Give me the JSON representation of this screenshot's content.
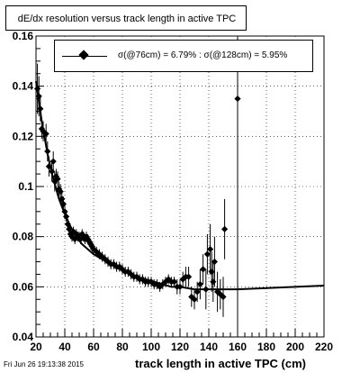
{
  "footer": {
    "timestamp": "Fri Jun 26 19:13:38 2015"
  },
  "chart_data": {
    "type": "scatter",
    "title": "dE/dx resolution versus track length in active TPC",
    "xlabel": "track length in active TPC (cm)",
    "ylabel": "",
    "xlim": [
      20,
      220
    ],
    "ylim": [
      0.04,
      0.16
    ],
    "xticks": [
      20,
      40,
      60,
      80,
      100,
      120,
      140,
      160,
      180,
      200,
      220
    ],
    "yticks": [
      0.04,
      0.06,
      0.08,
      0.1,
      0.12,
      0.14,
      0.16
    ],
    "grid": true,
    "legend_position": "top",
    "vertical_line_x": 160,
    "series": [
      {
        "name": "σ(@76cm) =  6.79% : σ(@128cm) =  5.95%",
        "points": [
          [
            21,
            0.139,
            0.01
          ],
          [
            22,
            0.136,
            0.008
          ],
          [
            23,
            0.131,
            0.005
          ],
          [
            24,
            0.123,
            0.004
          ],
          [
            25,
            0.122,
            0.004
          ],
          [
            27,
            0.121,
            0.004
          ],
          [
            28,
            0.114,
            0.004
          ],
          [
            29,
            0.108,
            0.004
          ],
          [
            31,
            0.106,
            0.004
          ],
          [
            32,
            0.11,
            0.004
          ],
          [
            33,
            0.102,
            0.004
          ],
          [
            34,
            0.104,
            0.003
          ],
          [
            35,
            0.103,
            0.003
          ],
          [
            36,
            0.099,
            0.003
          ],
          [
            37,
            0.098,
            0.003
          ],
          [
            38,
            0.095,
            0.003
          ],
          [
            39,
            0.093,
            0.003
          ],
          [
            40,
            0.09,
            0.003
          ],
          [
            41,
            0.088,
            0.002
          ],
          [
            42,
            0.085,
            0.002
          ],
          [
            43,
            0.083,
            0.002
          ],
          [
            44,
            0.081,
            0.002
          ],
          [
            45,
            0.08,
            0.002
          ],
          [
            46,
            0.082,
            0.002
          ],
          [
            47,
            0.079,
            0.002
          ],
          [
            48,
            0.081,
            0.002
          ],
          [
            49,
            0.08,
            0.002
          ],
          [
            50,
            0.08,
            0.002
          ],
          [
            51,
            0.079,
            0.002
          ],
          [
            52,
            0.081,
            0.002
          ],
          [
            53,
            0.08,
            0.002
          ],
          [
            54,
            0.079,
            0.002
          ],
          [
            55,
            0.08,
            0.002
          ],
          [
            56,
            0.079,
            0.002
          ],
          [
            57,
            0.078,
            0.002
          ],
          [
            58,
            0.077,
            0.002
          ],
          [
            59,
            0.076,
            0.002
          ],
          [
            60,
            0.075,
            0.002
          ],
          [
            62,
            0.074,
            0.002
          ],
          [
            64,
            0.073,
            0.002
          ],
          [
            66,
            0.072,
            0.002
          ],
          [
            68,
            0.071,
            0.002
          ],
          [
            70,
            0.07,
            0.002
          ],
          [
            72,
            0.069,
            0.002
          ],
          [
            74,
            0.069,
            0.002
          ],
          [
            76,
            0.068,
            0.002
          ],
          [
            78,
            0.068,
            0.002
          ],
          [
            80,
            0.067,
            0.002
          ],
          [
            82,
            0.066,
            0.002
          ],
          [
            84,
            0.066,
            0.002
          ],
          [
            86,
            0.065,
            0.002
          ],
          [
            88,
            0.064,
            0.002
          ],
          [
            90,
            0.064,
            0.002
          ],
          [
            92,
            0.063,
            0.002
          ],
          [
            94,
            0.063,
            0.002
          ],
          [
            96,
            0.062,
            0.002
          ],
          [
            98,
            0.062,
            0.002
          ],
          [
            100,
            0.062,
            0.002
          ],
          [
            102,
            0.061,
            0.002
          ],
          [
            104,
            0.061,
            0.002
          ],
          [
            106,
            0.06,
            0.002
          ],
          [
            108,
            0.061,
            0.002
          ],
          [
            110,
            0.062,
            0.002
          ],
          [
            112,
            0.063,
            0.002
          ],
          [
            114,
            0.062,
            0.002
          ],
          [
            116,
            0.062,
            0.002
          ],
          [
            118,
            0.06,
            0.003
          ],
          [
            120,
            0.06,
            0.003
          ],
          [
            122,
            0.063,
            0.003
          ],
          [
            124,
            0.064,
            0.004
          ],
          [
            126,
            0.064,
            0.004
          ],
          [
            128,
            0.056,
            0.004
          ],
          [
            130,
            0.055,
            0.004
          ],
          [
            132,
            0.058,
            0.004
          ],
          [
            134,
            0.061,
            0.006
          ],
          [
            136,
            0.067,
            0.006
          ],
          [
            138,
            0.059,
            0.008
          ],
          [
            139,
            0.073,
            0.008
          ],
          [
            141,
            0.075,
            0.01
          ],
          [
            142,
            0.066,
            0.008
          ],
          [
            143,
            0.062,
            0.008
          ],
          [
            144,
            0.07,
            0.01
          ],
          [
            146,
            0.058,
            0.008
          ],
          [
            148,
            0.057,
            0.006
          ],
          [
            150,
            0.056,
            0.008
          ],
          [
            151,
            0.083,
            0.012
          ],
          [
            160,
            0.135,
            0.05
          ]
        ]
      }
    ],
    "fit_curve": [
      [
        20,
        0.142
      ],
      [
        24,
        0.126
      ],
      [
        28,
        0.113
      ],
      [
        32,
        0.103
      ],
      [
        36,
        0.095
      ],
      [
        40,
        0.089
      ],
      [
        44,
        0.084
      ],
      [
        48,
        0.08
      ],
      [
        52,
        0.077
      ],
      [
        56,
        0.075
      ],
      [
        60,
        0.073
      ],
      [
        66,
        0.071
      ],
      [
        72,
        0.069
      ],
      [
        78,
        0.067
      ],
      [
        84,
        0.066
      ],
      [
        90,
        0.064
      ],
      [
        96,
        0.063
      ],
      [
        102,
        0.062
      ],
      [
        108,
        0.061
      ],
      [
        114,
        0.06
      ],
      [
        120,
        0.06
      ],
      [
        130,
        0.059
      ],
      [
        140,
        0.059
      ],
      [
        150,
        0.059
      ],
      [
        160,
        0.059
      ],
      [
        180,
        0.0595
      ],
      [
        200,
        0.06
      ],
      [
        220,
        0.0605
      ]
    ]
  }
}
